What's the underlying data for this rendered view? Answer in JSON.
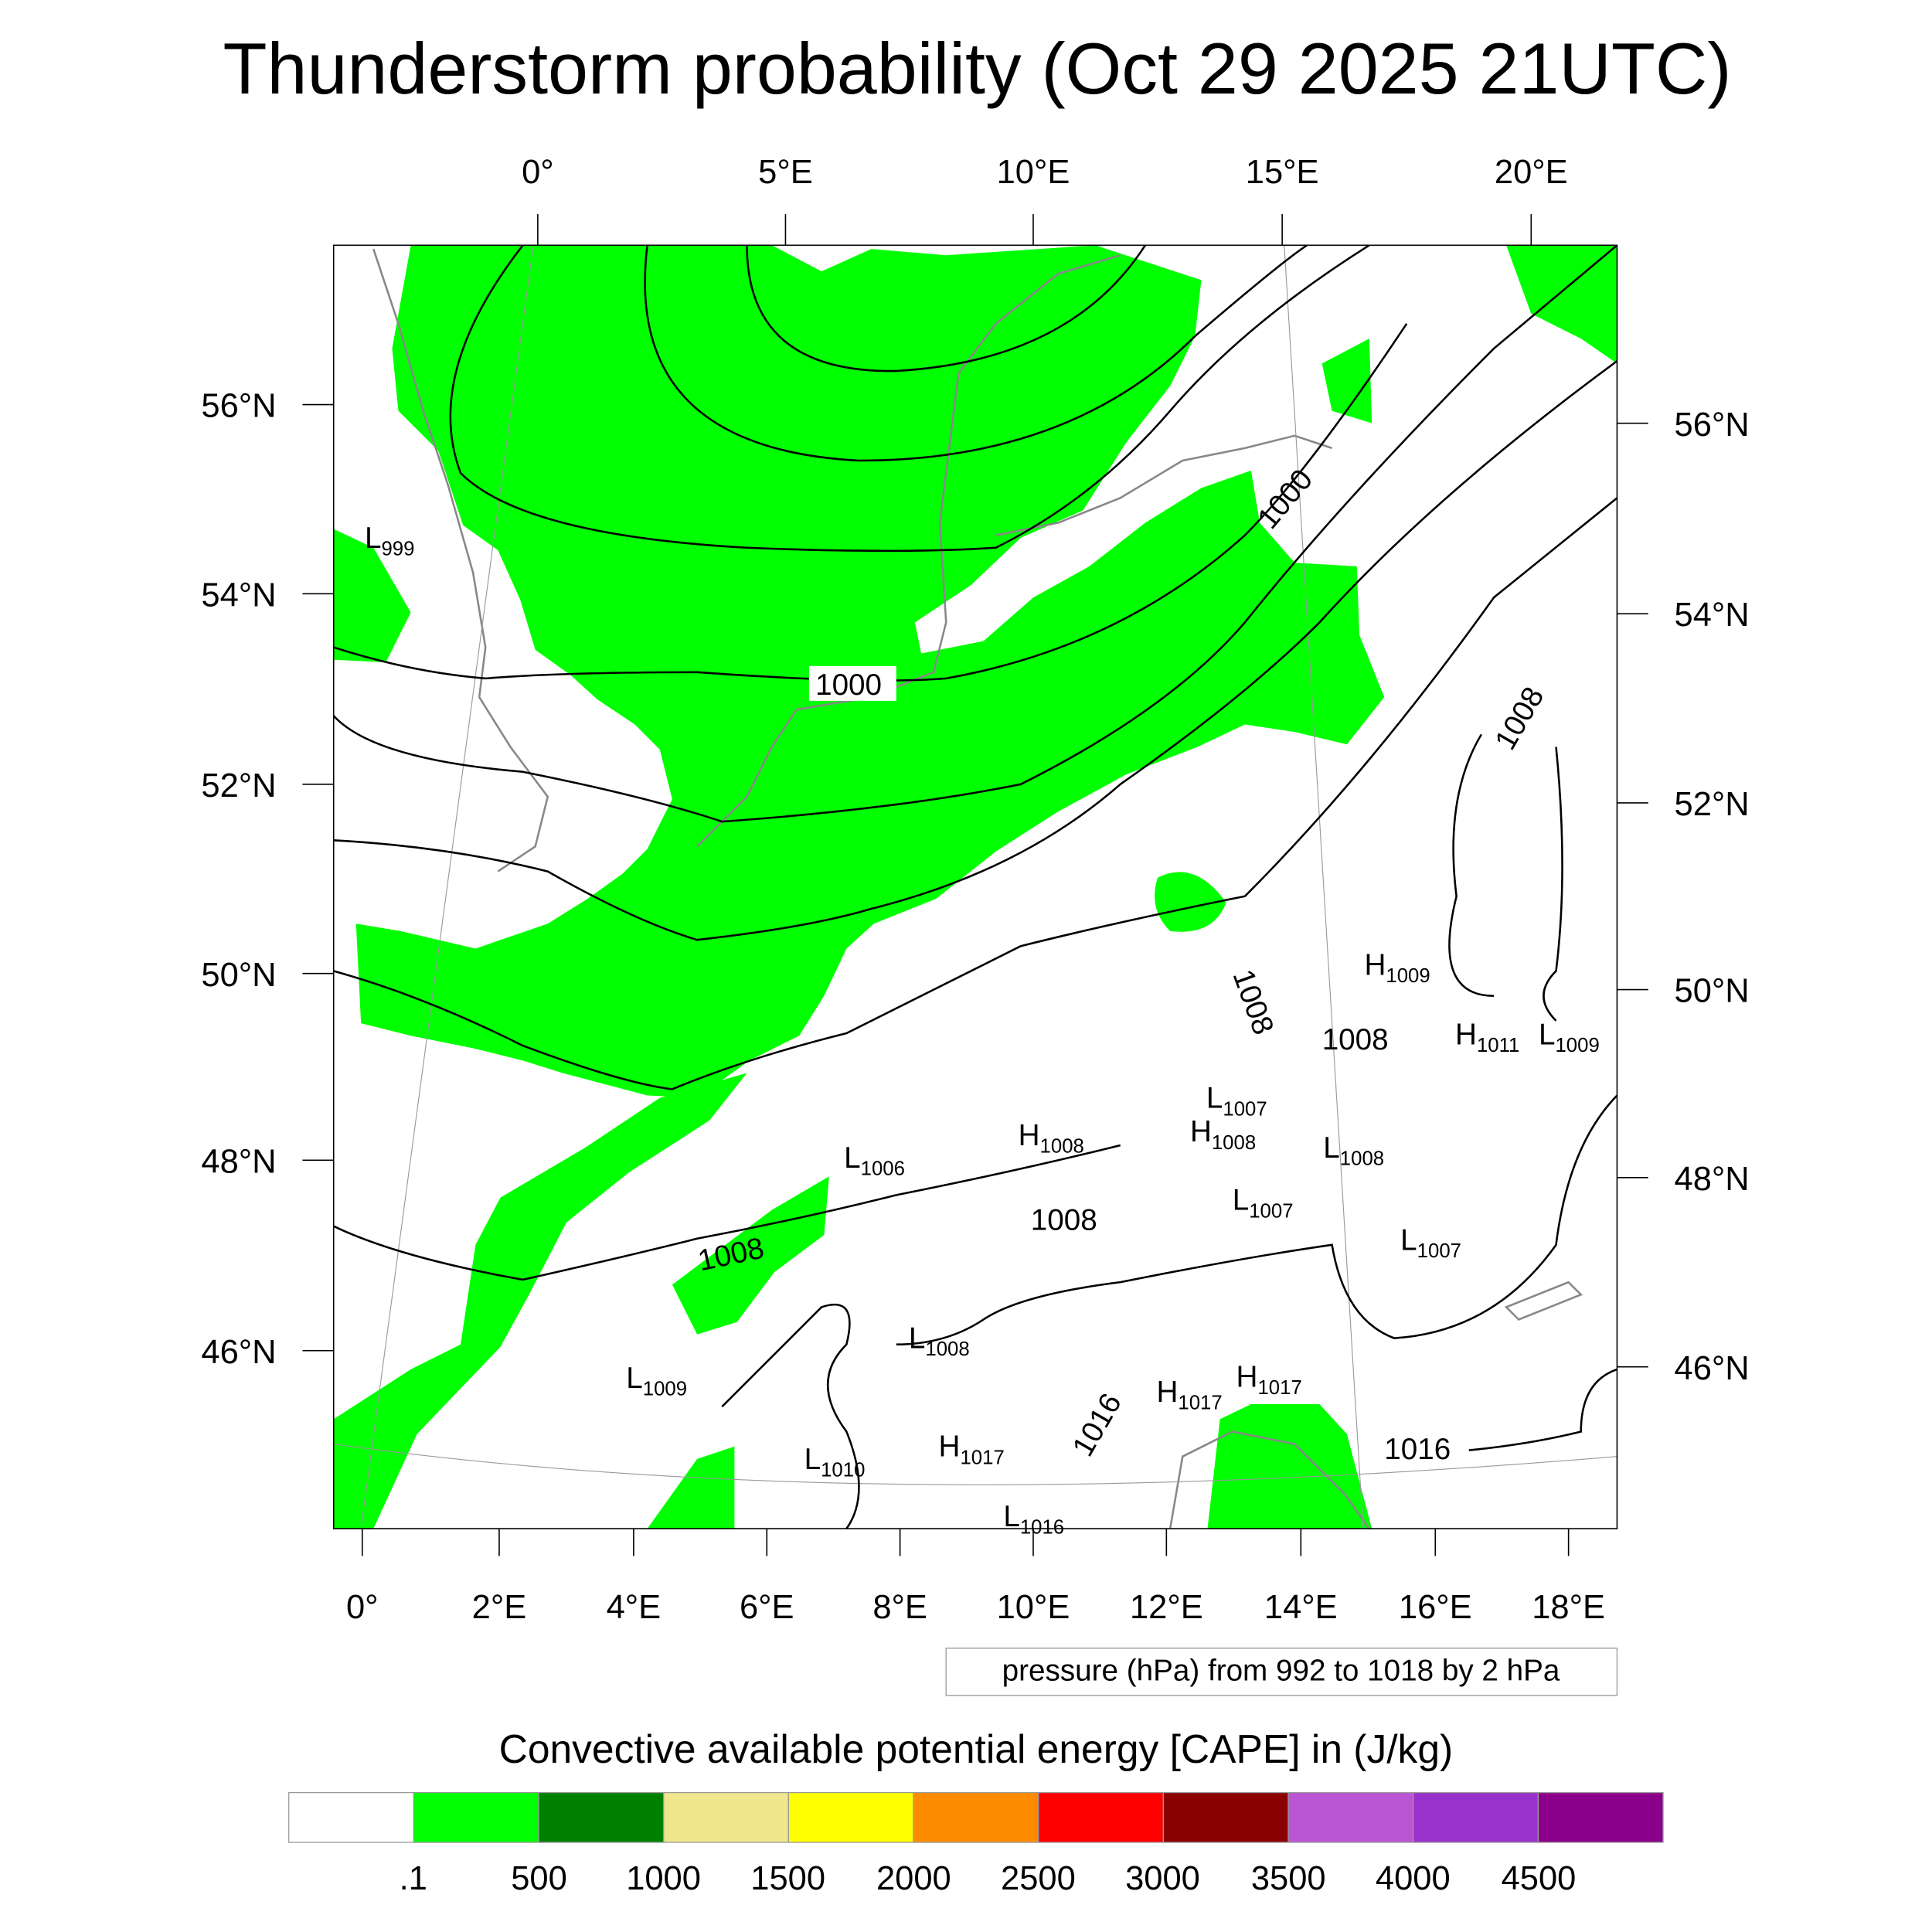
{
  "title": "Thunderstorm probability (Oct 29 2025 21UTC)",
  "axes": {
    "top_lon": [
      "0°",
      "5°E",
      "10°E",
      "15°E",
      "20°E"
    ],
    "bottom_lon": [
      "0°",
      "2°E",
      "4°E",
      "6°E",
      "8°E",
      "10°E",
      "12°E",
      "14°E",
      "16°E",
      "18°E"
    ],
    "left_lat": [
      "56°N",
      "54°N",
      "52°N",
      "50°N",
      "48°N",
      "46°N"
    ],
    "right_lat": [
      "56°N",
      "54°N",
      "52°N",
      "50°N",
      "48°N",
      "46°N"
    ]
  },
  "contour_labels": [
    "1000",
    "1000",
    "1008",
    "1008",
    "1008",
    "1008",
    "1008",
    "1016",
    "1016"
  ],
  "pressure_centers": [
    {
      "type": "L",
      "value": "999"
    },
    {
      "type": "H",
      "value": "1009"
    },
    {
      "type": "H",
      "value": "1011"
    },
    {
      "type": "L",
      "value": "1009"
    },
    {
      "type": "L",
      "value": "1007"
    },
    {
      "type": "H",
      "value": "1008"
    },
    {
      "type": "H",
      "value": "1008"
    },
    {
      "type": "L",
      "value": "1008"
    },
    {
      "type": "L",
      "value": "1006"
    },
    {
      "type": "L",
      "value": "1007"
    },
    {
      "type": "L",
      "value": "1007"
    },
    {
      "type": "L",
      "value": "1008"
    },
    {
      "type": "L",
      "value": "1009"
    },
    {
      "type": "H",
      "value": "1017"
    },
    {
      "type": "H",
      "value": "1017"
    },
    {
      "type": "H",
      "value": "1017"
    },
    {
      "type": "L",
      "value": "1010"
    },
    {
      "type": "L",
      "value": "1016"
    }
  ],
  "contour_info": "pressure (hPa) from 992 to 1018 by 2 hPa",
  "colorbar": {
    "title": "Convective available potential energy [CAPE] in (J/kg)",
    "colors": [
      "#ffffff",
      "#00ff00",
      "#008000",
      "#f0e68c",
      "#ffff00",
      "#ff8c00",
      "#ff0000",
      "#8b0000",
      "#ba55d3",
      "#9932cc",
      "#8b008b"
    ],
    "labels": [
      ".1",
      "500",
      "1000",
      "1500",
      "2000",
      "2500",
      "3000",
      "3500",
      "4000",
      "4500"
    ]
  }
}
